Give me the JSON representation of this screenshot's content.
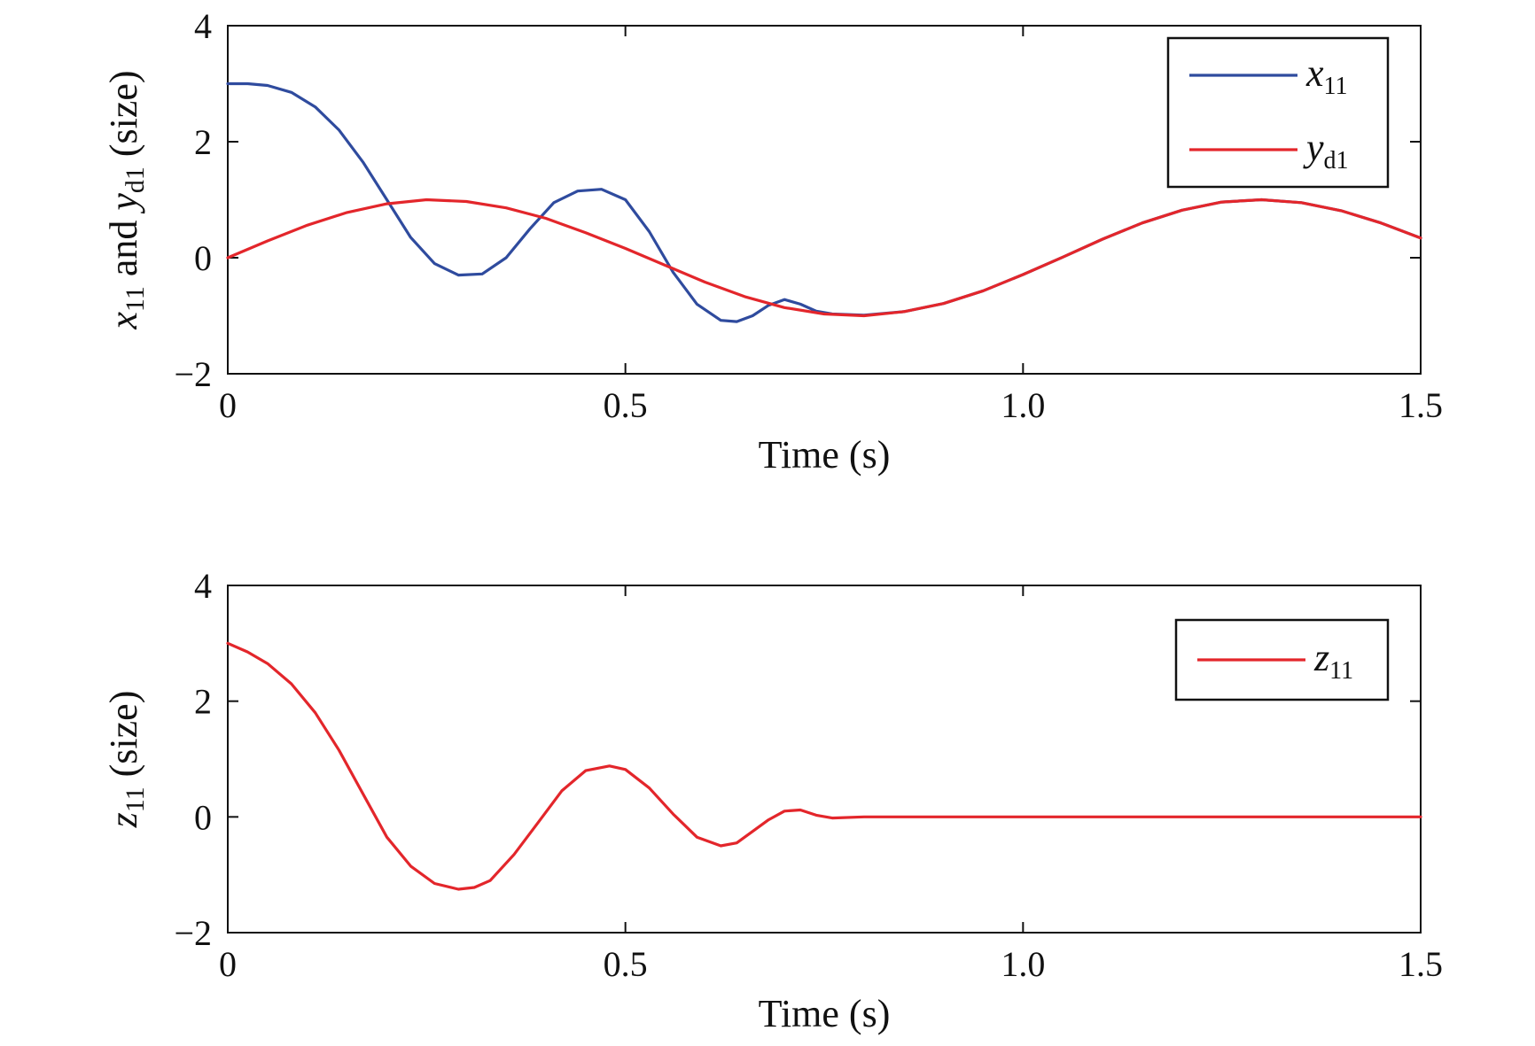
{
  "chart_data": [
    {
      "type": "line",
      "xlabel": "Time (s)",
      "ylabel": {
        "base1": "x",
        "sub1": "11",
        "mid": " and ",
        "base2": "y",
        "sub2": "d1",
        "tail": " (size)"
      },
      "xlim": [
        0,
        1.5
      ],
      "ylim": [
        -2,
        4
      ],
      "xticks": [
        {
          "value": 0,
          "label": "0"
        },
        {
          "value": 0.5,
          "label": "0.5"
        },
        {
          "value": 1.0,
          "label": "1.0"
        },
        {
          "value": 1.5,
          "label": "1.5"
        }
      ],
      "yticks": [
        {
          "value": -2,
          "label": "−2"
        },
        {
          "value": 0,
          "label": "0"
        },
        {
          "value": 2,
          "label": "2"
        },
        {
          "value": 4,
          "label": "4"
        }
      ],
      "grid": false,
      "legend_position": "top-right",
      "series": [
        {
          "legend_base": "x",
          "legend_sub": "11",
          "color": "#2f4b9e",
          "x": [
            0,
            0.025,
            0.05,
            0.08,
            0.11,
            0.14,
            0.17,
            0.2,
            0.23,
            0.26,
            0.29,
            0.32,
            0.35,
            0.38,
            0.41,
            0.44,
            0.47,
            0.5,
            0.53,
            0.56,
            0.59,
            0.62,
            0.64,
            0.66,
            0.68,
            0.7,
            0.72,
            0.74,
            0.76,
            0.8,
            0.85,
            0.9,
            0.95,
            1.0,
            1.05,
            1.1,
            1.15,
            1.2,
            1.25,
            1.3,
            1.35,
            1.4,
            1.45,
            1.5
          ],
          "y": [
            3.0,
            3.0,
            2.97,
            2.85,
            2.6,
            2.2,
            1.65,
            1.0,
            0.35,
            -0.1,
            -0.3,
            -0.28,
            0.0,
            0.5,
            0.95,
            1.15,
            1.18,
            1.0,
            0.45,
            -0.25,
            -0.8,
            -1.08,
            -1.1,
            -1.0,
            -0.82,
            -0.72,
            -0.8,
            -0.92,
            -0.97,
            -0.99,
            -0.93,
            -0.79,
            -0.57,
            -0.29,
            0.01,
            0.32,
            0.6,
            0.82,
            0.96,
            1.0,
            0.95,
            0.81,
            0.6,
            0.34
          ]
        },
        {
          "legend_base": "y",
          "legend_sub": "d1",
          "color": "#e3262b",
          "x": [
            0,
            0.05,
            0.1,
            0.15,
            0.2,
            0.25,
            0.3,
            0.35,
            0.4,
            0.45,
            0.5,
            0.55,
            0.6,
            0.65,
            0.7,
            0.75,
            0.8,
            0.85,
            0.9,
            0.95,
            1.0,
            1.05,
            1.1,
            1.15,
            1.2,
            1.25,
            1.3,
            1.35,
            1.4,
            1.45,
            1.5
          ],
          "y": [
            0.0,
            0.29,
            0.56,
            0.78,
            0.93,
            1.0,
            0.97,
            0.86,
            0.68,
            0.43,
            0.16,
            -0.13,
            -0.42,
            -0.67,
            -0.86,
            -0.97,
            -1.0,
            -0.93,
            -0.79,
            -0.57,
            -0.29,
            0.01,
            0.32,
            0.6,
            0.82,
            0.96,
            1.0,
            0.95,
            0.81,
            0.6,
            0.34
          ]
        }
      ]
    },
    {
      "type": "line",
      "xlabel": "Time (s)",
      "ylabel": {
        "base1": "z",
        "sub1": "11",
        "tail": " (size)"
      },
      "xlim": [
        0,
        1.5
      ],
      "ylim": [
        -2,
        4
      ],
      "xticks": [
        {
          "value": 0,
          "label": "0"
        },
        {
          "value": 0.5,
          "label": "0.5"
        },
        {
          "value": 1.0,
          "label": "1.0"
        },
        {
          "value": 1.5,
          "label": "1.5"
        }
      ],
      "yticks": [
        {
          "value": -2,
          "label": "−2"
        },
        {
          "value": 0,
          "label": "0"
        },
        {
          "value": 2,
          "label": "2"
        },
        {
          "value": 4,
          "label": "4"
        }
      ],
      "grid": false,
      "legend_position": "top-right",
      "series": [
        {
          "legend_base": "z",
          "legend_sub": "11",
          "color": "#e3262b",
          "x": [
            0,
            0.025,
            0.05,
            0.08,
            0.11,
            0.14,
            0.17,
            0.2,
            0.23,
            0.26,
            0.29,
            0.31,
            0.33,
            0.36,
            0.39,
            0.42,
            0.45,
            0.48,
            0.5,
            0.53,
            0.56,
            0.59,
            0.62,
            0.64,
            0.66,
            0.68,
            0.7,
            0.72,
            0.74,
            0.76,
            0.8,
            0.9,
            1.0,
            1.1,
            1.2,
            1.3,
            1.4,
            1.5
          ],
          "y": [
            3.0,
            2.85,
            2.65,
            2.3,
            1.8,
            1.15,
            0.4,
            -0.35,
            -0.85,
            -1.15,
            -1.25,
            -1.22,
            -1.1,
            -0.65,
            -0.1,
            0.45,
            0.8,
            0.88,
            0.82,
            0.5,
            0.05,
            -0.35,
            -0.5,
            -0.45,
            -0.25,
            -0.05,
            0.1,
            0.12,
            0.03,
            -0.02,
            0.0,
            0.0,
            0.0,
            0.0,
            0.0,
            0.0,
            0.0,
            0.0
          ]
        }
      ]
    }
  ]
}
